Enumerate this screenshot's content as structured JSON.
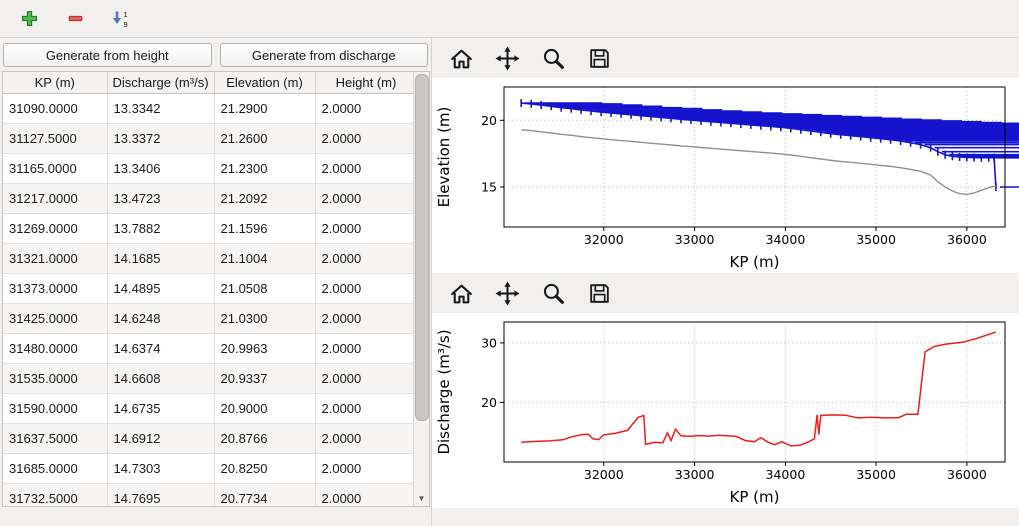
{
  "window": {
    "background": "#f1f0ef"
  },
  "toolbar": {
    "sort_digit_top": "1",
    "sort_digit_bottom": "9",
    "colors": {
      "add": "#3aa83a",
      "remove": "#e05555",
      "sort": "#4a78c4"
    }
  },
  "left_panel": {
    "buttons": {
      "generate_height": "Generate from height",
      "generate_discharge": "Generate from discharge"
    },
    "table": {
      "columns": [
        "KP (m)",
        "Discharge (m³/s)",
        "Elevation (m)",
        "Height (m)"
      ],
      "rows": [
        [
          "31090.0000",
          "13.3342",
          "21.2900",
          "2.0000"
        ],
        [
          "31127.5000",
          "13.3372",
          "21.2600",
          "2.0000"
        ],
        [
          "31165.0000",
          "13.3406",
          "21.2300",
          "2.0000"
        ],
        [
          "31217.0000",
          "13.4723",
          "21.2092",
          "2.0000"
        ],
        [
          "31269.0000",
          "13.7882",
          "21.1596",
          "2.0000"
        ],
        [
          "31321.0000",
          "14.1685",
          "21.1004",
          "2.0000"
        ],
        [
          "31373.0000",
          "14.4895",
          "21.0508",
          "2.0000"
        ],
        [
          "31425.0000",
          "14.6248",
          "21.0300",
          "2.0000"
        ],
        [
          "31480.0000",
          "14.6374",
          "20.9963",
          "2.0000"
        ],
        [
          "31535.0000",
          "14.6608",
          "20.9337",
          "2.0000"
        ],
        [
          "31590.0000",
          "14.6735",
          "20.9000",
          "2.0000"
        ],
        [
          "31637.5000",
          "14.6912",
          "20.8766",
          "2.0000"
        ],
        [
          "31685.0000",
          "14.7303",
          "20.8250",
          "2.0000"
        ],
        [
          "31732.5000",
          "14.7695",
          "20.7734",
          "2.0000"
        ]
      ]
    }
  },
  "plot_toolbar": {
    "icons": [
      "home-icon",
      "pan-icon",
      "zoom-icon",
      "save-icon"
    ]
  },
  "chart_data": [
    {
      "type": "line",
      "title": "",
      "xlabel": "KP (m)",
      "ylabel": "Elevation (m)",
      "xlim": [
        30900,
        36420
      ],
      "ylim": [
        12,
        22.5
      ],
      "xticks": [
        32000,
        33000,
        34000,
        35000,
        36000
      ],
      "yticks": [
        15,
        20
      ],
      "grid": true,
      "legend": "none",
      "series": [
        {
          "name": "elevation",
          "color": "#1515cf",
          "width": 1.6,
          "marker": "plus",
          "x": [
            31090,
            31200,
            31310,
            31420,
            31530,
            31640,
            31750,
            31860,
            31970,
            32080,
            32190,
            32300,
            32410,
            32520,
            32630,
            32740,
            32850,
            32960,
            33070,
            33180,
            33290,
            33400,
            33510,
            33620,
            33730,
            33840,
            33950,
            34060,
            34170,
            34280,
            34390,
            34500,
            34610,
            34720,
            34830,
            34940,
            35050,
            35160,
            35270,
            35380,
            35490,
            35600,
            35680,
            35760,
            35840,
            35920,
            36000,
            36080,
            36160,
            36240,
            36300,
            36320
          ],
          "y": [
            21.29,
            21.23,
            21.14,
            21.05,
            20.95,
            20.88,
            20.78,
            20.7,
            20.62,
            20.55,
            20.48,
            20.42,
            20.35,
            20.28,
            20.22,
            20.15,
            20.08,
            20.02,
            19.96,
            19.9,
            19.84,
            19.78,
            19.72,
            19.66,
            19.6,
            19.54,
            19.48,
            19.4,
            19.3,
            19.2,
            19.1,
            19.0,
            18.92,
            18.85,
            18.78,
            18.7,
            18.62,
            18.55,
            18.45,
            18.32,
            18.18,
            17.95,
            17.65,
            17.42,
            17.3,
            17.25,
            17.22,
            17.21,
            17.2,
            17.2,
            17.19,
            15.0
          ]
        },
        {
          "name": "ground",
          "color": "#909090",
          "width": 1.4,
          "marker": "none",
          "x": [
            31090,
            31200,
            31310,
            31420,
            31530,
            31640,
            31750,
            31860,
            31970,
            32080,
            32190,
            32300,
            32410,
            32520,
            32630,
            32740,
            32850,
            32960,
            33070,
            33180,
            33290,
            33400,
            33510,
            33620,
            33730,
            33840,
            33950,
            34060,
            34170,
            34280,
            34390,
            34500,
            34610,
            34720,
            34830,
            34940,
            35050,
            35160,
            35270,
            35380,
            35490,
            35600,
            35680,
            35760,
            35840,
            35920,
            36000,
            36080,
            36160,
            36240,
            36300,
            36320
          ],
          "y": [
            19.29,
            19.23,
            19.14,
            19.05,
            18.95,
            18.88,
            18.78,
            18.7,
            18.62,
            18.55,
            18.48,
            18.42,
            18.35,
            18.28,
            18.22,
            18.15,
            18.08,
            18.02,
            17.96,
            17.9,
            17.84,
            17.78,
            17.72,
            17.66,
            17.6,
            17.54,
            17.48,
            17.4,
            17.3,
            17.2,
            17.1,
            17.0,
            16.92,
            16.85,
            16.78,
            16.7,
            16.62,
            16.55,
            16.45,
            16.32,
            16.18,
            15.9,
            15.4,
            15.0,
            14.7,
            14.5,
            14.45,
            14.55,
            14.75,
            14.95,
            15.05,
            15.05
          ]
        }
      ]
    },
    {
      "type": "line",
      "title": "",
      "xlabel": "KP (m)",
      "ylabel": "Discharge (m³/s)",
      "xlim": [
        30900,
        36420
      ],
      "ylim": [
        10,
        33.5
      ],
      "xticks": [
        32000,
        33000,
        34000,
        35000,
        36000
      ],
      "yticks": [
        20,
        30
      ],
      "grid": true,
      "legend": "none",
      "series": [
        {
          "name": "discharge",
          "color": "#ee1c1c",
          "width": 1.5,
          "marker": "none",
          "x": [
            31090,
            31250,
            31400,
            31550,
            31650,
            31760,
            31830,
            31880,
            31940,
            32000,
            32120,
            32260,
            32380,
            32440,
            32460,
            32560,
            32650,
            32700,
            32740,
            32790,
            32850,
            32950,
            33060,
            33160,
            33260,
            33360,
            33460,
            33560,
            33660,
            33730,
            33810,
            33880,
            33960,
            34060,
            34160,
            34260,
            34320,
            34350,
            34368,
            34390,
            34520,
            34660,
            34800,
            34950,
            35100,
            35250,
            35330,
            35460,
            35540,
            35640,
            35780,
            35950,
            36100,
            36220,
            36320
          ],
          "y": [
            13.3,
            13.45,
            13.55,
            13.75,
            14.25,
            14.6,
            14.65,
            13.9,
            13.75,
            14.55,
            14.8,
            15.3,
            17.5,
            17.8,
            12.95,
            13.3,
            13.2,
            14.9,
            13.6,
            15.5,
            14.4,
            14.3,
            14.45,
            14.35,
            14.5,
            14.4,
            14.3,
            13.6,
            13.4,
            14.1,
            13.3,
            12.9,
            13.4,
            12.7,
            12.8,
            13.4,
            13.9,
            17.9,
            14.6,
            17.8,
            17.9,
            17.85,
            17.4,
            17.5,
            17.4,
            17.45,
            18.0,
            18.0,
            28.5,
            29.4,
            29.8,
            30.1,
            30.7,
            31.3,
            31.8
          ]
        }
      ]
    }
  ]
}
